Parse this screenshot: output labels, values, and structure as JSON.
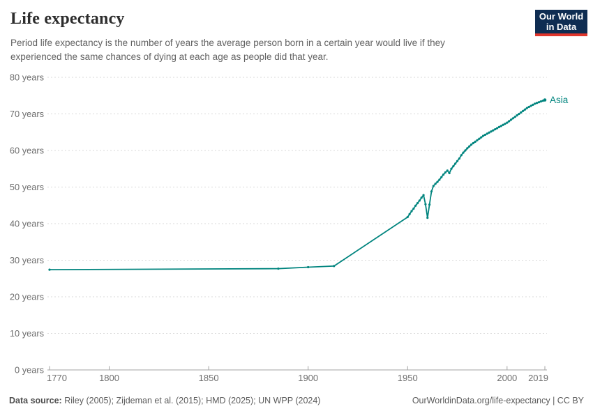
{
  "header": {
    "title": "Life expectancy",
    "subtitle_line1": "Period life expectancy is the number of years the average person born in a certain year would live if they",
    "subtitle_line2": "experienced the same chances of dying at each age as people did that year.",
    "logo": {
      "line1": "Our World",
      "line2": "in Data",
      "bg_color": "#0f2d52",
      "accent_color": "#e0362c"
    }
  },
  "footer": {
    "datasource_label": "Data source:",
    "datasource_text": " Riley (2005); Zijdeman et al. (2015); HMD (2025); UN WPP (2024)",
    "license_text": "OurWorldinData.org/life-expectancy | CC BY"
  },
  "chart_data": {
    "type": "line",
    "title": "Life expectancy",
    "xlabel": "",
    "ylabel": "years",
    "xlim": [
      1770,
      2019
    ],
    "ylim": [
      0,
      80
    ],
    "x_ticks": [
      1770,
      1800,
      1850,
      1900,
      1950,
      2000,
      2019
    ],
    "y_ticks": [
      0,
      10,
      20,
      30,
      40,
      50,
      60,
      70,
      80
    ],
    "y_tick_suffix": " years",
    "grid": "horizontal-dashed",
    "legend": "end-of-line-label",
    "series": [
      {
        "name": "Asia",
        "color": "#00847e",
        "points": [
          [
            1770,
            27.4
          ],
          [
            1885,
            27.7
          ],
          [
            1900,
            28.1
          ],
          [
            1913,
            28.4
          ],
          [
            1950,
            41.8
          ],
          [
            1951,
            42.6
          ],
          [
            1952,
            43.4
          ],
          [
            1953,
            44.1
          ],
          [
            1954,
            44.9
          ],
          [
            1955,
            45.6
          ],
          [
            1956,
            46.3
          ],
          [
            1957,
            47.1
          ],
          [
            1958,
            47.8
          ],
          [
            1959,
            45.3
          ],
          [
            1960,
            41.6
          ],
          [
            1961,
            45.2
          ],
          [
            1962,
            48.8
          ],
          [
            1963,
            50.3
          ],
          [
            1964,
            50.9
          ],
          [
            1965,
            51.4
          ],
          [
            1966,
            52.0
          ],
          [
            1967,
            52.7
          ],
          [
            1968,
            53.4
          ],
          [
            1969,
            54.0
          ],
          [
            1970,
            54.5
          ],
          [
            1971,
            53.8
          ],
          [
            1972,
            55.0
          ],
          [
            1973,
            55.7
          ],
          [
            1974,
            56.4
          ],
          [
            1975,
            57.1
          ],
          [
            1976,
            57.8
          ],
          [
            1977,
            58.7
          ],
          [
            1978,
            59.4
          ],
          [
            1979,
            60.0
          ],
          [
            1980,
            60.6
          ],
          [
            1981,
            61.1
          ],
          [
            1982,
            61.6
          ],
          [
            1983,
            62.0
          ],
          [
            1984,
            62.4
          ],
          [
            1985,
            62.8
          ],
          [
            1986,
            63.2
          ],
          [
            1987,
            63.6
          ],
          [
            1988,
            64.0
          ],
          [
            1989,
            64.3
          ],
          [
            1990,
            64.6
          ],
          [
            1991,
            64.9
          ],
          [
            1992,
            65.2
          ],
          [
            1993,
            65.5
          ],
          [
            1994,
            65.8
          ],
          [
            1995,
            66.1
          ],
          [
            1996,
            66.4
          ],
          [
            1997,
            66.7
          ],
          [
            1998,
            67.0
          ],
          [
            1999,
            67.3
          ],
          [
            2000,
            67.6
          ],
          [
            2001,
            68.0
          ],
          [
            2002,
            68.4
          ],
          [
            2003,
            68.8
          ],
          [
            2004,
            69.2
          ],
          [
            2005,
            69.6
          ],
          [
            2006,
            70.0
          ],
          [
            2007,
            70.4
          ],
          [
            2008,
            70.8
          ],
          [
            2009,
            71.2
          ],
          [
            2010,
            71.6
          ],
          [
            2011,
            71.9
          ],
          [
            2012,
            72.2
          ],
          [
            2013,
            72.5
          ],
          [
            2014,
            72.8
          ],
          [
            2015,
            73.0
          ],
          [
            2016,
            73.2
          ],
          [
            2017,
            73.4
          ],
          [
            2018,
            73.6
          ],
          [
            2019,
            73.8
          ]
        ]
      }
    ]
  }
}
